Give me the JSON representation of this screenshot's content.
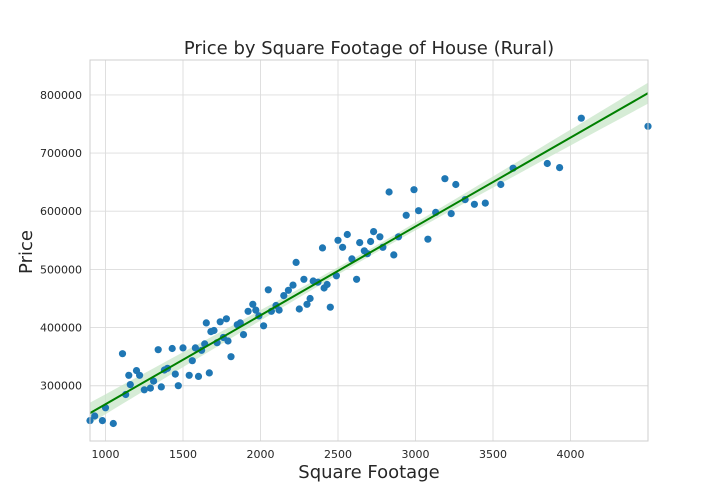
{
  "chart_data": {
    "type": "scatter",
    "title": "Price by Square Footage of House (Rural)",
    "xlabel": "Square Footage",
    "ylabel": "Price",
    "xlim": [
      900,
      4500
    ],
    "ylim": [
      205000,
      860000
    ],
    "xticks": [
      1000,
      1500,
      2000,
      2500,
      3000,
      3500,
      4000
    ],
    "yticks": [
      300000,
      400000,
      500000,
      600000,
      700000,
      800000
    ],
    "grid": true,
    "colors": {
      "points": "#1f77b4",
      "regression_line": "#008000",
      "confidence_band": "#c8e6c8"
    },
    "regression": {
      "x": [
        900,
        4500
      ],
      "y": [
        253000,
        803000
      ],
      "ci_halfwidth_at_ends": 18000,
      "ci_halfwidth_at_center": 6000
    },
    "points": [
      [
        900,
        240000
      ],
      [
        930,
        248000
      ],
      [
        980,
        240000
      ],
      [
        1000,
        262000
      ],
      [
        1050,
        235000
      ],
      [
        1110,
        355000
      ],
      [
        1130,
        285000
      ],
      [
        1150,
        318000
      ],
      [
        1160,
        302000
      ],
      [
        1200,
        326000
      ],
      [
        1220,
        318000
      ],
      [
        1250,
        293000
      ],
      [
        1290,
        296000
      ],
      [
        1310,
        308000
      ],
      [
        1340,
        362000
      ],
      [
        1360,
        298000
      ],
      [
        1380,
        327000
      ],
      [
        1400,
        330000
      ],
      [
        1430,
        364000
      ],
      [
        1450,
        320000
      ],
      [
        1470,
        300000
      ],
      [
        1500,
        365000
      ],
      [
        1540,
        318000
      ],
      [
        1560,
        343000
      ],
      [
        1580,
        365000
      ],
      [
        1600,
        316000
      ],
      [
        1620,
        361000
      ],
      [
        1640,
        372000
      ],
      [
        1650,
        408000
      ],
      [
        1670,
        322000
      ],
      [
        1680,
        393000
      ],
      [
        1700,
        395000
      ],
      [
        1720,
        374000
      ],
      [
        1740,
        410000
      ],
      [
        1760,
        383000
      ],
      [
        1780,
        415000
      ],
      [
        1790,
        377000
      ],
      [
        1810,
        350000
      ],
      [
        1850,
        405000
      ],
      [
        1870,
        408000
      ],
      [
        1890,
        388000
      ],
      [
        1920,
        428000
      ],
      [
        1950,
        440000
      ],
      [
        1970,
        430000
      ],
      [
        1990,
        420000
      ],
      [
        2020,
        403000
      ],
      [
        2050,
        465000
      ],
      [
        2070,
        428000
      ],
      [
        2100,
        438000
      ],
      [
        2120,
        430000
      ],
      [
        2150,
        455000
      ],
      [
        2180,
        464000
      ],
      [
        2210,
        473000
      ],
      [
        2230,
        512000
      ],
      [
        2250,
        432000
      ],
      [
        2280,
        483000
      ],
      [
        2300,
        440000
      ],
      [
        2320,
        450000
      ],
      [
        2340,
        480000
      ],
      [
        2370,
        478000
      ],
      [
        2400,
        537000
      ],
      [
        2410,
        468000
      ],
      [
        2430,
        474000
      ],
      [
        2450,
        435000
      ],
      [
        2490,
        489000
      ],
      [
        2500,
        550000
      ],
      [
        2530,
        538000
      ],
      [
        2560,
        560000
      ],
      [
        2590,
        518000
      ],
      [
        2620,
        483000
      ],
      [
        2640,
        546000
      ],
      [
        2670,
        532000
      ],
      [
        2690,
        527000
      ],
      [
        2710,
        548000
      ],
      [
        2730,
        565000
      ],
      [
        2770,
        556000
      ],
      [
        2790,
        538000
      ],
      [
        2830,
        633000
      ],
      [
        2860,
        525000
      ],
      [
        2890,
        556000
      ],
      [
        2940,
        593000
      ],
      [
        2990,
        637000
      ],
      [
        3020,
        601000
      ],
      [
        3080,
        552000
      ],
      [
        3130,
        598000
      ],
      [
        3190,
        656000
      ],
      [
        3230,
        596000
      ],
      [
        3260,
        646000
      ],
      [
        3320,
        620000
      ],
      [
        3380,
        612000
      ],
      [
        3450,
        614000
      ],
      [
        3550,
        646000
      ],
      [
        3630,
        674000
      ],
      [
        3850,
        682000
      ],
      [
        3930,
        675000
      ],
      [
        4070,
        760000
      ],
      [
        4500,
        746000
      ]
    ]
  }
}
